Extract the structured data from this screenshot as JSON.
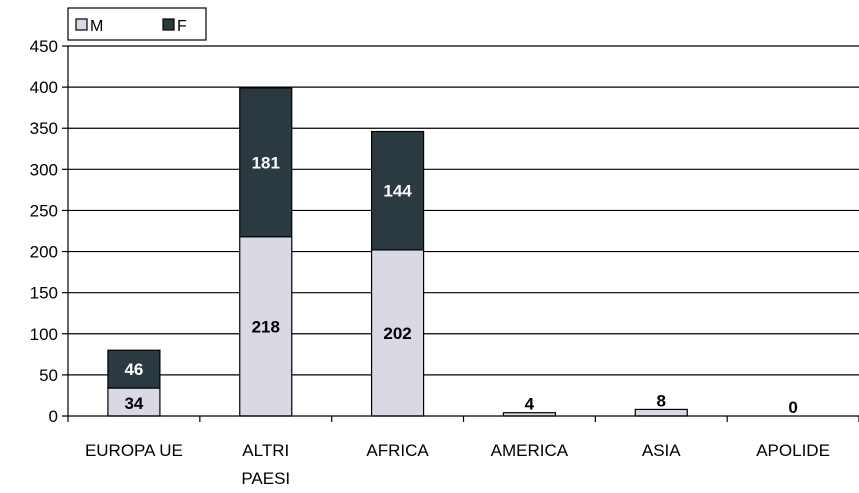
{
  "chart_data": {
    "type": "bar",
    "stacked": true,
    "title": "",
    "xlabel": "",
    "ylabel": "",
    "ylim": [
      0,
      450
    ],
    "ytick_step": 50,
    "grid": true,
    "legend_position": "top-left",
    "categories": [
      "EUROPA UE",
      "ALTRI PAESI",
      "AFRICA",
      "AMERICA",
      "ASIA",
      "APOLIDE"
    ],
    "series": [
      {
        "name": "M",
        "values": [
          34,
          218,
          202,
          4,
          8,
          0
        ],
        "color": "#d9d9e3"
      },
      {
        "name": "F",
        "values": [
          46,
          181,
          144,
          0,
          0,
          0
        ],
        "color": "#2b3a40"
      }
    ]
  }
}
